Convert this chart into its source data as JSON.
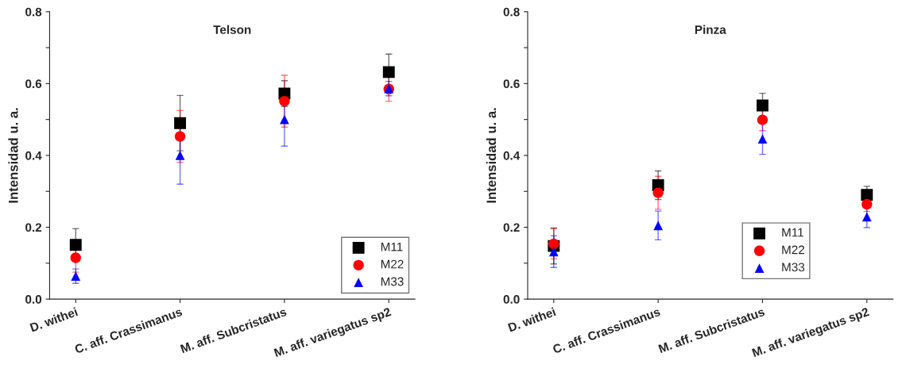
{
  "chart_data": [
    {
      "type": "scatter",
      "title": "Telson",
      "ylabel": "Intensidad u. a.",
      "categories": [
        "D. withei",
        "C. aff. Crassimanus",
        "M. aff. Subcristatus",
        "M. aff. variegatus sp2"
      ],
      "ylim": [
        0,
        0.8
      ],
      "yticks": [
        {
          "value": 0,
          "label": "0.0"
        },
        {
          "value": 0.1,
          "label": null
        },
        0.2,
        {
          "value": 0.3,
          "label": null
        },
        0.4,
        {
          "value": 0.5,
          "label": null
        },
        0.6,
        {
          "value": 0.7,
          "label": null
        },
        0.8
      ],
      "legend": "bottom right",
      "grid": false,
      "series": [
        {
          "name": "M11",
          "color": "#000000",
          "marker": "square",
          "values": [
            0.151,
            0.49,
            0.572,
            0.632
          ],
          "errors": [
            0.045,
            0.077,
            0.036,
            0.05
          ]
        },
        {
          "name": "M22",
          "color": "#ff0000",
          "marker": "circle",
          "values": [
            0.115,
            0.453,
            0.551,
            0.585
          ],
          "errors": [
            0.04,
            0.072,
            0.072,
            0.034
          ]
        },
        {
          "name": "M33",
          "color": "#0000ff",
          "marker": "triangle",
          "values": [
            0.064,
            0.4,
            0.5,
            0.586
          ],
          "errors": [
            0.02,
            0.08,
            0.074,
            0.02
          ]
        }
      ]
    },
    {
      "type": "scatter",
      "title": "Pinza",
      "ylabel": "Intensidad u. a.",
      "categories": [
        "D. withei",
        "C. aff. Crassimanus",
        "M. aff. Subcristatus",
        "M. aff. variegatus sp2"
      ],
      "ylim": [
        0,
        0.8
      ],
      "yticks": [
        {
          "value": 0,
          "label": "0.0"
        },
        {
          "value": 0.1,
          "label": null
        },
        0.2,
        {
          "value": 0.3,
          "label": null
        },
        0.4,
        {
          "value": 0.5,
          "label": null
        },
        0.6,
        {
          "value": 0.7,
          "label": null
        },
        0.8
      ],
      "legend": "bottom",
      "grid": false,
      "series": [
        {
          "name": "M11",
          "color": "#000000",
          "marker": "square",
          "values": [
            0.148,
            0.317,
            0.539,
            0.29
          ],
          "errors": [
            0.05,
            0.04,
            0.034,
            0.024
          ]
        },
        {
          "name": "M22",
          "color": "#ff0000",
          "marker": "circle",
          "values": [
            0.154,
            0.296,
            0.499,
            0.264
          ],
          "errors": [
            0.042,
            0.046,
            0.03,
            0.02
          ]
        },
        {
          "name": "M33",
          "color": "#0000ff",
          "marker": "triangle",
          "values": [
            0.132,
            0.205,
            0.446,
            0.229
          ],
          "errors": [
            0.044,
            0.04,
            0.043,
            0.03
          ]
        }
      ]
    }
  ]
}
